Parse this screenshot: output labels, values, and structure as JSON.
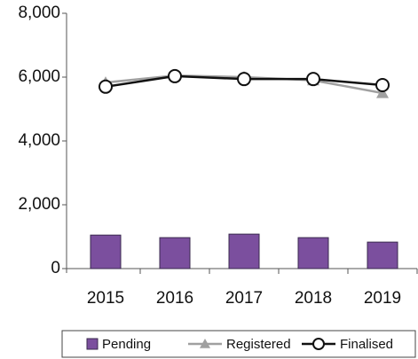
{
  "chart_data": {
    "type": "bar",
    "categories": [
      "2015",
      "2016",
      "2017",
      "2018",
      "2019"
    ],
    "series": [
      {
        "name": "Pending",
        "type": "bar",
        "color": "#7b4f9e",
        "values": [
          1050,
          970,
          1080,
          970,
          830
        ]
      },
      {
        "name": "Registered",
        "type": "line",
        "marker": "triangle",
        "color": "#a0a0a0",
        "values": [
          5830,
          6050,
          6000,
          5900,
          5500
        ]
      },
      {
        "name": "Finalised",
        "type": "line",
        "marker": "circle",
        "color": "#111111",
        "values": [
          5700,
          6030,
          5940,
          5940,
          5750
        ]
      }
    ],
    "ylim": [
      0,
      8000
    ],
    "yticks": [
      0,
      {
        "value": 2000,
        "label": "2,000"
      },
      {
        "value": 4000,
        "label": "4,000"
      },
      {
        "value": 6000,
        "label": "6,000"
      },
      {
        "value": 8000,
        "label": "8,000"
      }
    ],
    "legend": "bottom"
  }
}
